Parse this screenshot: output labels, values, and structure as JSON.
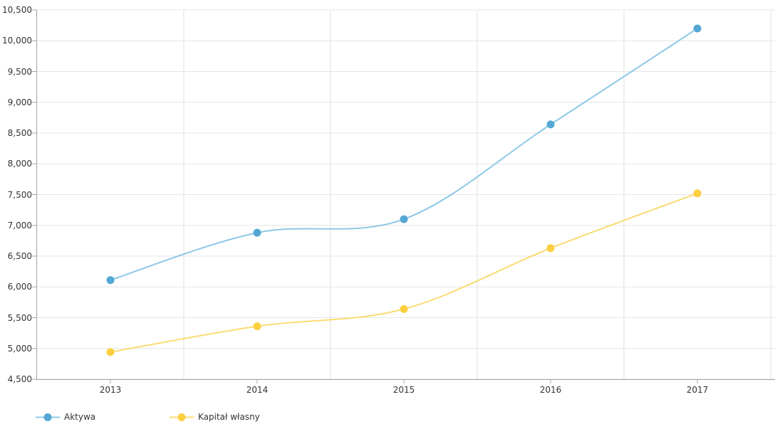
{
  "chart_data": {
    "type": "line",
    "curve": "spline",
    "title": "",
    "xlabel": "",
    "ylabel": "",
    "x_categories": [
      "2013",
      "2014",
      "2015",
      "2016",
      "2017"
    ],
    "series": [
      {
        "name": "Aktywa",
        "values": [
          6110,
          6880,
          7100,
          8640,
          10200
        ],
        "marker_color": "#55a7d4",
        "line_color": "#8ec9e6"
      },
      {
        "name": "Kapitał własny",
        "values": [
          4940,
          5360,
          5640,
          6630,
          7520
        ],
        "marker_color": "#fccf41",
        "line_color": "#fbdc73"
      }
    ],
    "ylim": [
      4500,
      10500
    ],
    "ytick_step": 500,
    "grid": true,
    "legend_position": "bottom-left"
  },
  "axes": {
    "y_labels": [
      "10,500",
      "10,000",
      "9,500",
      "9,000",
      "8,500",
      "8,000",
      "7,500",
      "7,000",
      "6,500",
      "6,000",
      "5,500",
      "5,000",
      "4,500"
    ],
    "x_labels": [
      "2013",
      "2014",
      "2015",
      "2016",
      "2017"
    ]
  },
  "legend": {
    "items": [
      {
        "label": "Aktywa",
        "marker_color": "#55a7d4",
        "line_color": "#8ec9e6"
      },
      {
        "label": "Kapitał własny",
        "marker_color": "#fccf41",
        "line_color": "#fbdc73"
      }
    ]
  },
  "colors": {
    "grid_horizontal": "#e6e6e6",
    "grid_vertical": "#e2e2e2",
    "axis": "#a3a3a3",
    "text": "#333333",
    "background": "#ffffff"
  }
}
